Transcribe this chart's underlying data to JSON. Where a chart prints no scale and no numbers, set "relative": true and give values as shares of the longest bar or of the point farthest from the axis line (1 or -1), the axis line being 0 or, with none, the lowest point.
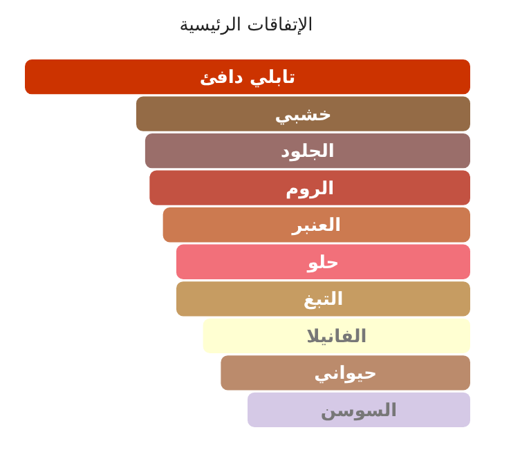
{
  "chart_data": {
    "type": "bar",
    "orientation": "horizontal",
    "relative": true,
    "title": "الإتفاقات الرئيسية",
    "categories": [
      "تابلي دافئ",
      "خشبي",
      "الجلود",
      "الروم",
      "العنبر",
      "حلو",
      "التبغ",
      "الفانيلا",
      "حيواني",
      "السوسن"
    ],
    "values": [
      1,
      0.75,
      0.73,
      0.72,
      0.69,
      0.66,
      0.66,
      0.6,
      0.56,
      0.5
    ],
    "colors": [
      "#cc3300",
      "#946b46",
      "#9a6e6a",
      "#c35242",
      "#cc7a50",
      "#f2707a",
      "#c69c62",
      "#ffffd2",
      "#bb8b6c",
      "#d5c9e6"
    ]
  }
}
